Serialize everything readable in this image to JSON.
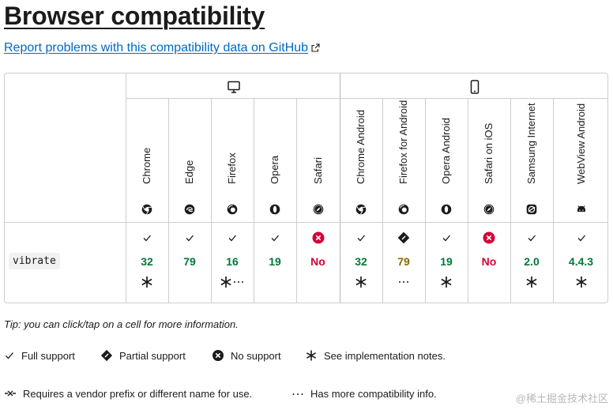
{
  "title": "Browser compatibility",
  "report_link": "Report problems with this compatibility data on GitHub",
  "platforms": [
    {
      "name": "desktop",
      "icon": "desktop-icon"
    },
    {
      "name": "mobile",
      "icon": "mobile-icon"
    }
  ],
  "browsers": [
    {
      "name": "Chrome",
      "icon": "chrome-logo-icon"
    },
    {
      "name": "Edge",
      "icon": "edge-logo-icon"
    },
    {
      "name": "Firefox",
      "icon": "firefox-logo-icon"
    },
    {
      "name": "Opera",
      "icon": "opera-logo-icon"
    },
    {
      "name": "Safari",
      "icon": "safari-logo-icon"
    },
    {
      "name": "Chrome Android",
      "icon": "chrome-logo-icon"
    },
    {
      "name": "Firefox for Android",
      "icon": "firefox-logo-icon"
    },
    {
      "name": "Opera Android",
      "icon": "opera-logo-icon"
    },
    {
      "name": "Safari on iOS",
      "icon": "safari-logo-icon"
    },
    {
      "name": "Samsung Internet",
      "icon": "samsung-logo-icon"
    },
    {
      "name": "WebView Android",
      "icon": "android-logo-icon"
    }
  ],
  "feature": {
    "name": "vibrate",
    "support": [
      {
        "status": "yes",
        "version": "32",
        "notes": "asterisk"
      },
      {
        "status": "yes",
        "version": "79",
        "notes": ""
      },
      {
        "status": "yes",
        "version": "16",
        "notes": "asterisk-more"
      },
      {
        "status": "yes",
        "version": "19",
        "notes": ""
      },
      {
        "status": "no",
        "version": "No",
        "notes": ""
      },
      {
        "status": "yes",
        "version": "32",
        "notes": "asterisk"
      },
      {
        "status": "partial",
        "version": "79",
        "notes": "more"
      },
      {
        "status": "yes",
        "version": "19",
        "notes": "asterisk"
      },
      {
        "status": "no",
        "version": "No",
        "notes": ""
      },
      {
        "status": "yes",
        "version": "2.0",
        "notes": "asterisk"
      },
      {
        "status": "yes",
        "version": "4.4.3",
        "notes": "asterisk"
      }
    ]
  },
  "tip": "Tip: you can click/tap on a cell for more information.",
  "legend": {
    "full": "Full support",
    "partial": "Partial support",
    "none": "No support",
    "notes": "See implementation notes.",
    "prefix": "Requires a vendor prefix or different name for use.",
    "more": "Has more compatibility info."
  },
  "watermark": "@稀土掘金技术社区",
  "colors": {
    "link": "#0069c2",
    "yes": "#007936",
    "partial": "#8a6a00",
    "no": "#d30038",
    "border": "#cdcdcd"
  }
}
